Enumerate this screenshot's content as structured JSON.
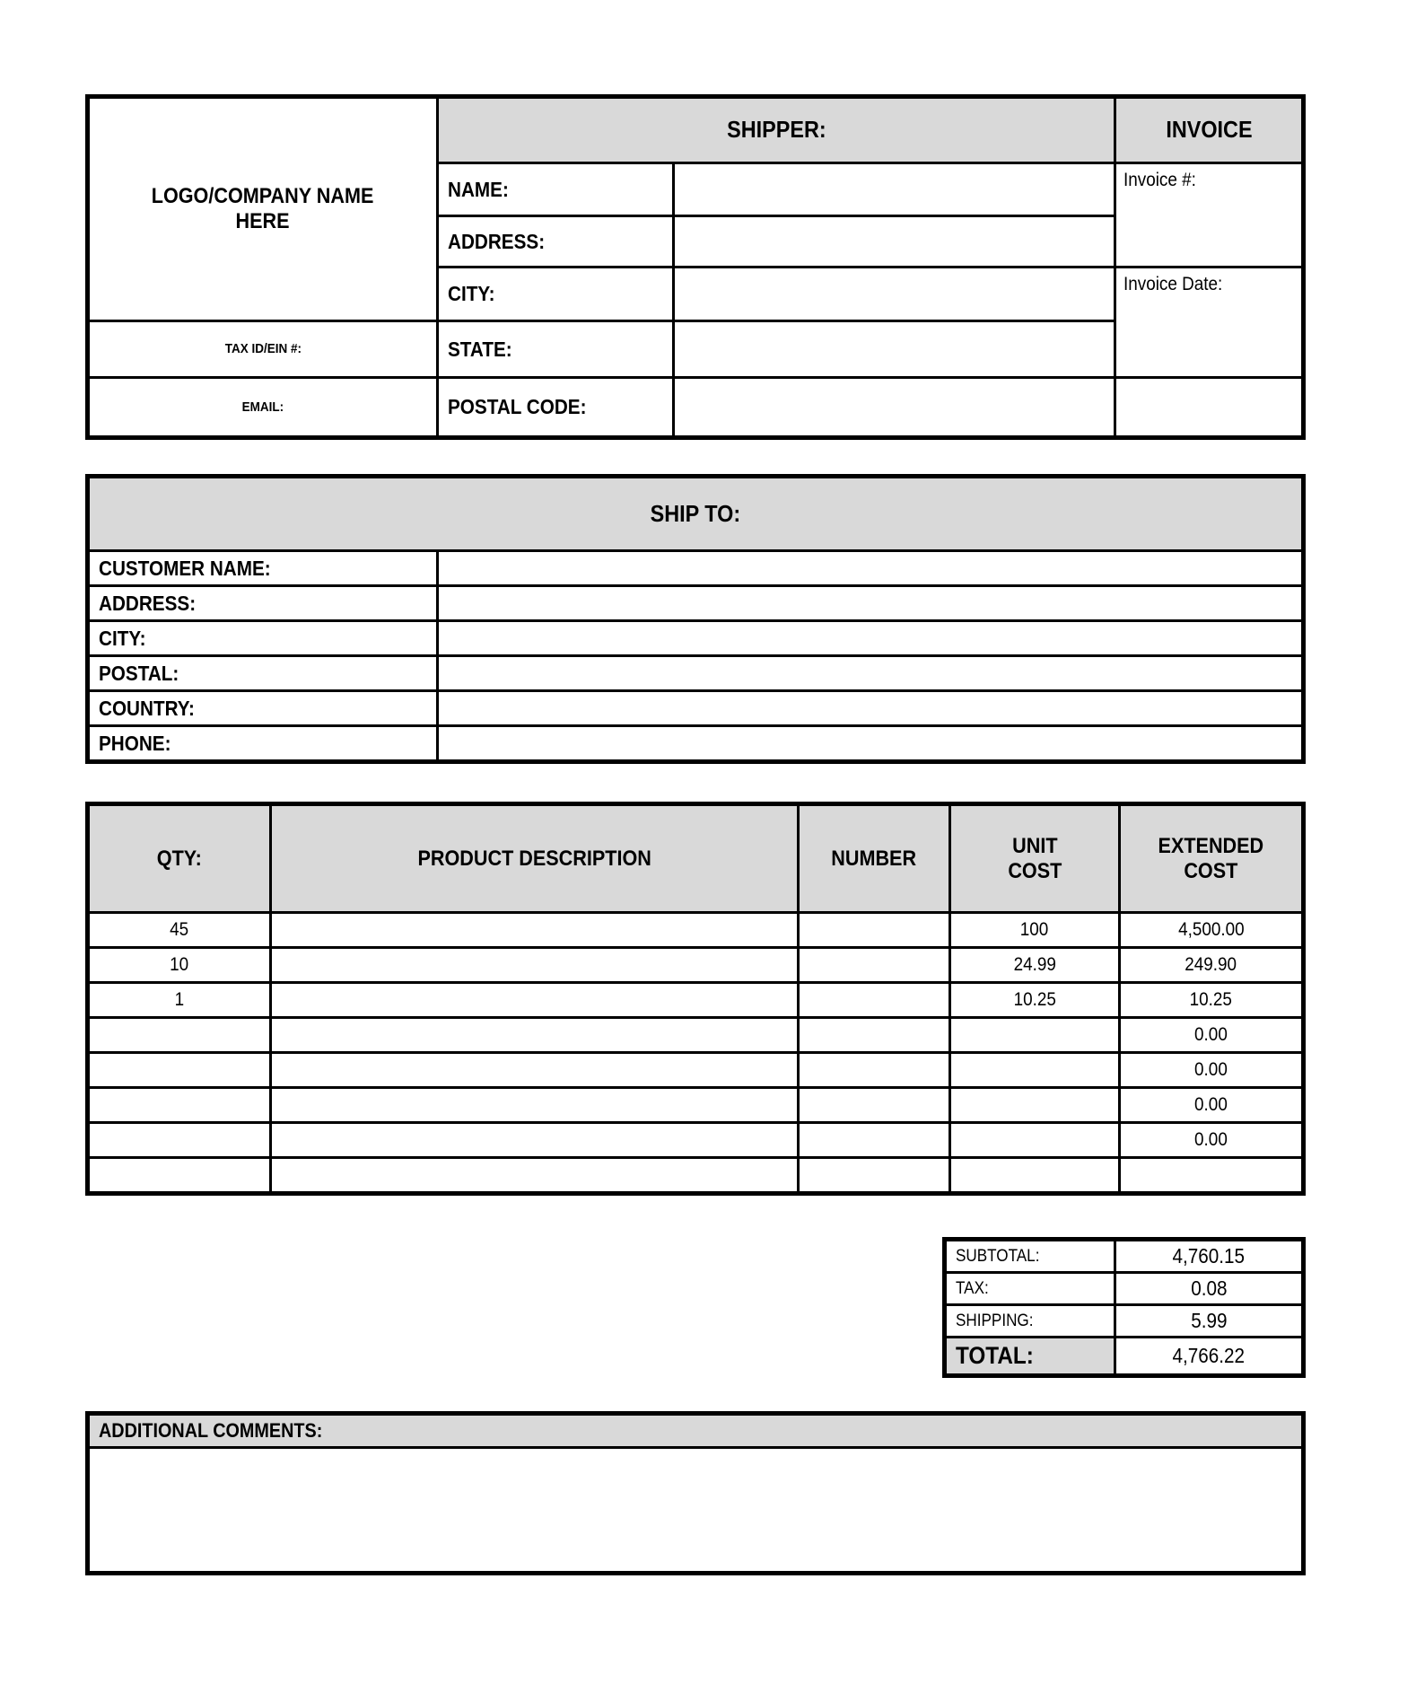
{
  "colors": {
    "header_fill": "#d9d9d9",
    "border": "#000000",
    "text": "#000000"
  },
  "shipper_block": {
    "logo_text": "LOGO/COMPANY NAME\nHERE",
    "tax_id_label": "TAX ID/EIN #:",
    "email_label": "EMAIL:",
    "shipper_header": "SHIPPER:",
    "invoice_header": "INVOICE",
    "name_label": "NAME:",
    "name_value": "",
    "address_label": "ADDRESS:",
    "address_value": "",
    "city_label": "CITY:",
    "city_value": "",
    "state_label": "STATE:",
    "state_value": "",
    "postal_label": "POSTAL CODE:",
    "postal_value": "",
    "invoice_number_label": "Invoice #:",
    "invoice_number_value": "",
    "invoice_date_label": "Invoice Date:",
    "invoice_date_value": ""
  },
  "ship_to": {
    "header": "SHIP TO:",
    "rows": [
      {
        "label": "CUSTOMER NAME:",
        "value": ""
      },
      {
        "label": "ADDRESS:",
        "value": ""
      },
      {
        "label": "CITY:",
        "value": ""
      },
      {
        "label": "POSTAL:",
        "value": ""
      },
      {
        "label": "COUNTRY:",
        "value": ""
      },
      {
        "label": "PHONE:",
        "value": ""
      }
    ]
  },
  "items": {
    "headers": {
      "qty": "QTY:",
      "description": "PRODUCT DESCRIPTION",
      "number": "NUMBER",
      "unit_cost": "UNIT\nCOST",
      "extended_cost": "EXTENDED\nCOST"
    },
    "rows": [
      {
        "qty": "45",
        "description": "",
        "number": "",
        "unit_cost": "100",
        "extended_cost": "4,500.00"
      },
      {
        "qty": "10",
        "description": "",
        "number": "",
        "unit_cost": "24.99",
        "extended_cost": "249.90"
      },
      {
        "qty": "1",
        "description": "",
        "number": "",
        "unit_cost": "10.25",
        "extended_cost": "10.25"
      },
      {
        "qty": "",
        "description": "",
        "number": "",
        "unit_cost": "",
        "extended_cost": "0.00"
      },
      {
        "qty": "",
        "description": "",
        "number": "",
        "unit_cost": "",
        "extended_cost": "0.00"
      },
      {
        "qty": "",
        "description": "",
        "number": "",
        "unit_cost": "",
        "extended_cost": "0.00"
      },
      {
        "qty": "",
        "description": "",
        "number": "",
        "unit_cost": "",
        "extended_cost": "0.00"
      },
      {
        "qty": "",
        "description": "",
        "number": "",
        "unit_cost": "",
        "extended_cost": ""
      }
    ]
  },
  "totals": {
    "subtotal_label": "SUBTOTAL:",
    "subtotal_value": "4,760.15",
    "tax_label": "TAX:",
    "tax_value": "0.08",
    "shipping_label": "SHIPPING:",
    "shipping_value": "5.99",
    "total_label": "TOTAL:",
    "total_value": "4,766.22"
  },
  "comments": {
    "header": "ADDITIONAL COMMENTS:",
    "body": ""
  }
}
